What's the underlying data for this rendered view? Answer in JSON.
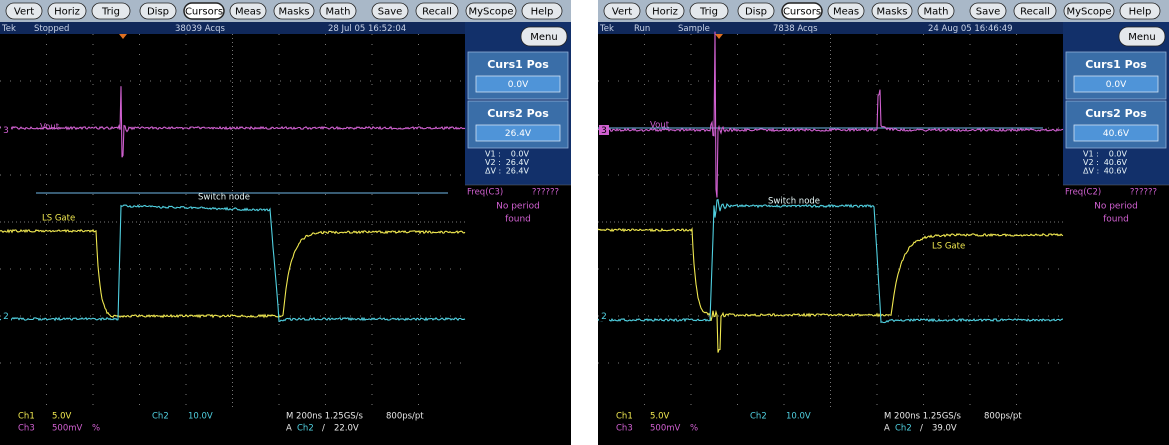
{
  "screens": [
    {
      "buttons": [
        "Vert",
        "Horiz",
        "Trig",
        "Disp",
        "Cursors",
        "Meas",
        "Masks",
        "Math",
        "Save",
        "Recall",
        "MyScope",
        "Help"
      ],
      "status": [
        "Tek",
        "Stopped",
        "38039 Acqs",
        "28 Jul 05 16:52:04"
      ],
      "menu": "Menu",
      "cursor1": {
        "title": "Curs1 Pos",
        "value": "0.0V"
      },
      "cursor2": {
        "title": "Curs2 Pos",
        "value": "26.4V"
      },
      "readouts": [
        [
          "V1 :",
          "0.0V"
        ],
        [
          "V2 :",
          "26.4V"
        ],
        [
          "ΔV :",
          "26.4V"
        ]
      ],
      "frequency": {
        "label": "Freq(C3)",
        "value": "??????",
        "message": [
          "No period",
          "found"
        ]
      },
      "trace_labels": [
        "Vout",
        "Switch node",
        "LS Gate"
      ],
      "ground_markers": [
        "3",
        "2"
      ],
      "bottom": {
        "ch1": [
          "Ch1",
          "5.0V"
        ],
        "ch2": [
          "Ch2",
          "10.0V"
        ],
        "ch3": [
          "Ch3",
          "500mV",
          "%"
        ],
        "timebase": [
          "M 200ns 1.25GS/s",
          "800ps/pt"
        ],
        "trigger": [
          "A",
          "Ch2",
          "/",
          "22.0V"
        ]
      }
    },
    {
      "buttons": [
        "Vert",
        "Horiz",
        "Trig",
        "Disp",
        "Cursors",
        "Meas",
        "Masks",
        "Math",
        "Save",
        "Recall",
        "MyScope",
        "Help"
      ],
      "status": [
        "Tek",
        "Run",
        "Sample",
        "7838 Acqs",
        "24 Aug 05 16:46:49"
      ],
      "menu": "Menu",
      "cursor1": {
        "title": "Curs1 Pos",
        "value": "0.0V"
      },
      "cursor2": {
        "title": "Curs2 Pos",
        "value": "40.6V"
      },
      "readouts": [
        [
          "V1 :",
          "0.0V"
        ],
        [
          "V2 :",
          "40.6V"
        ],
        [
          "ΔV :",
          "40.6V"
        ]
      ],
      "frequency": {
        "label": "Freq(C2)",
        "value": "??????",
        "message": [
          "No period",
          "found"
        ]
      },
      "trace_labels": [
        "Vout",
        "Switch node",
        "LS Gate"
      ],
      "ground_markers": [
        "3",
        "2"
      ],
      "bottom": {
        "ch1": [
          "Ch1",
          "5.0V"
        ],
        "ch2": [
          "Ch2",
          "10.0V"
        ],
        "ch3": [
          "Ch3",
          "500mV",
          "%"
        ],
        "timebase": [
          "M 200ns 1.25GS/s",
          "800ps/pt"
        ],
        "trigger": [
          "A",
          "Ch2",
          "/",
          "39.0V"
        ]
      }
    }
  ]
}
